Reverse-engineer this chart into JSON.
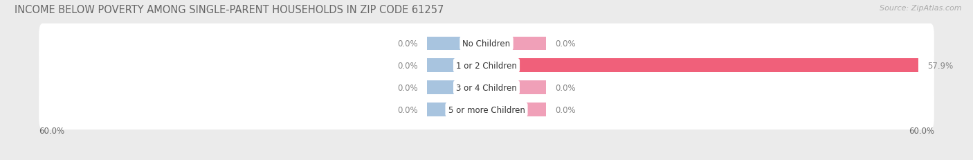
{
  "title": "INCOME BELOW POVERTY AMONG SINGLE-PARENT HOUSEHOLDS IN ZIP CODE 61257",
  "source": "Source: ZipAtlas.com",
  "categories": [
    "No Children",
    "1 or 2 Children",
    "3 or 4 Children",
    "5 or more Children"
  ],
  "single_father": [
    0.0,
    0.0,
    0.0,
    0.0
  ],
  "single_mother": [
    0.0,
    57.9,
    0.0,
    0.0
  ],
  "stub_size": 8.0,
  "xlim": [
    -60,
    60
  ],
  "color_father": "#a8c4df",
  "color_mother_stub": "#f0a0b8",
  "color_mother_large": "#f0607a",
  "row_bg_color": "#f5f5f5",
  "bg_color": "#ebebeb",
  "title_fontsize": 10.5,
  "source_fontsize": 8,
  "label_fontsize": 8.5,
  "value_color": "#888888"
}
